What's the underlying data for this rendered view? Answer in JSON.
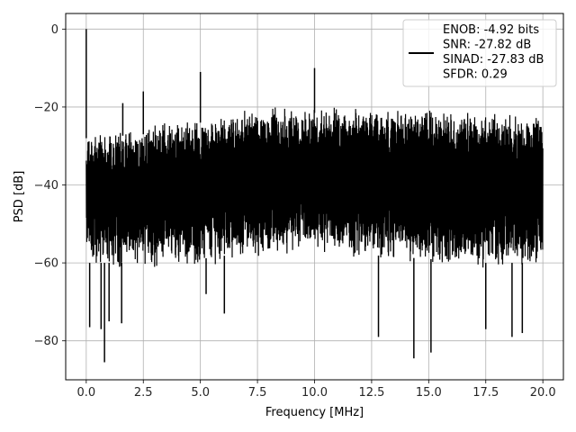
{
  "chart_data": {
    "type": "line",
    "title": "",
    "xlabel": "Frequency [MHz]",
    "ylabel": "PSD [dB]",
    "xlim": [
      -0.9,
      20.9
    ],
    "ylim": [
      -90,
      4
    ],
    "xticks": [
      0.0,
      2.5,
      5.0,
      7.5,
      10.0,
      12.5,
      15.0,
      17.5,
      20.0
    ],
    "xtick_labels": [
      "0.0",
      "2.5",
      "5.0",
      "7.5",
      "10.0",
      "12.5",
      "15.0",
      "17.5",
      "20.0"
    ],
    "yticks": [
      0,
      -20,
      -40,
      -60,
      -80
    ],
    "ytick_labels": [
      "0",
      "−20",
      "−40",
      "−60",
      "−80"
    ],
    "grid": true,
    "legend_position": "top-right",
    "line_color": "#000000",
    "series": [
      {
        "name": "ENOB: -4.92 bits\nSNR: -27.82 dB\nSINAD: -27.83 dB\nSFDR: 0.29",
        "x_range": [
          0,
          20
        ],
        "noise_band_upper": [
          [
            0,
            -26
          ],
          [
            2.5,
            -25
          ],
          [
            5.0,
            -22
          ],
          [
            7.5,
            -20
          ],
          [
            10.0,
            -19.5
          ],
          [
            12.5,
            -20
          ],
          [
            15.0,
            -20.5
          ],
          [
            17.5,
            -21.5
          ],
          [
            20.0,
            -22
          ]
        ],
        "noise_band_lower": [
          [
            0,
            -62
          ],
          [
            2.5,
            -62
          ],
          [
            5.0,
            -61
          ],
          [
            7.5,
            -59
          ],
          [
            10.0,
            -59
          ],
          [
            12.5,
            -60
          ],
          [
            15.0,
            -61
          ],
          [
            17.5,
            -62
          ],
          [
            20.0,
            -62
          ]
        ],
        "spurs": [
          [
            0.0,
            0.0
          ],
          [
            1.6,
            -19
          ],
          [
            2.5,
            -16
          ],
          [
            5.0,
            -11
          ],
          [
            10.0,
            -10
          ]
        ],
        "dips": [
          [
            0.15,
            -76.5
          ],
          [
            0.65,
            -77
          ],
          [
            0.8,
            -85.5
          ],
          [
            1.0,
            -75
          ],
          [
            1.55,
            -75.5
          ],
          [
            6.05,
            -73
          ],
          [
            12.8,
            -79
          ],
          [
            14.35,
            -84.5
          ],
          [
            15.1,
            -83
          ],
          [
            17.5,
            -77
          ],
          [
            18.65,
            -79
          ],
          [
            19.1,
            -78
          ],
          [
            5.25,
            -68
          ]
        ]
      }
    ]
  }
}
